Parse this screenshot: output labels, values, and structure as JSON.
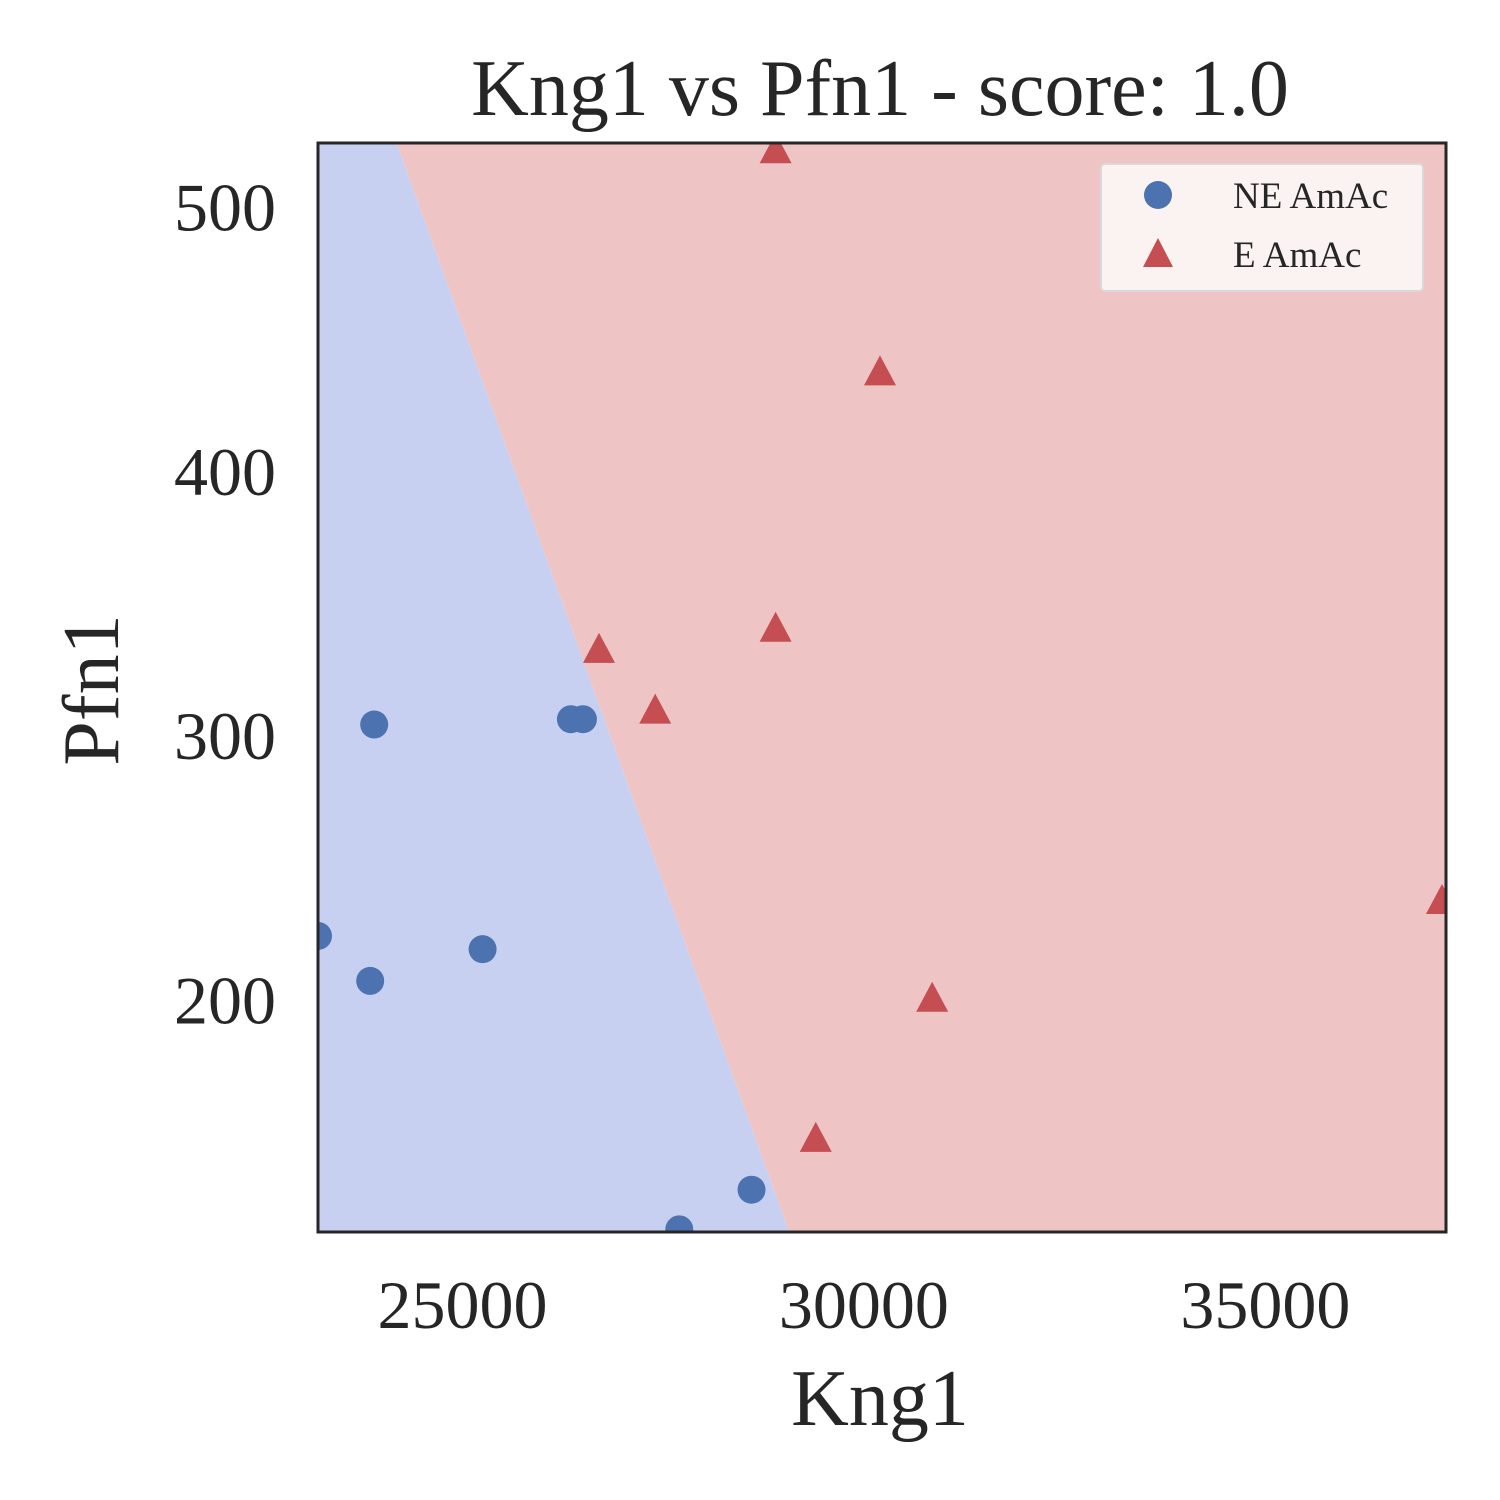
{
  "chart_data": {
    "type": "scatter",
    "title": "Kng1 vs Pfn1 - score: 1.0",
    "xlabel": "Kng1",
    "ylabel": "Pfn1",
    "xlim": [
      23200,
      37250
    ],
    "ylim": [
      112,
      524
    ],
    "x_ticks": [
      25000,
      30000,
      35000
    ],
    "y_ticks": [
      200,
      300,
      400,
      500
    ],
    "grid": false,
    "legend_position": "top-right",
    "decision_boundary": {
      "points": [
        [
          24180,
          524
        ],
        [
          29070,
          112
        ]
      ],
      "left_region_class": "NE AmAc",
      "right_region_class": "E AmAc",
      "left_region_color": "#c8d0f1",
      "right_region_color": "#eec4c4"
    },
    "series": [
      {
        "name": "NE AmAc",
        "marker": "circle",
        "color": "#4c72b0",
        "points": [
          [
            23200,
            224
          ],
          [
            23900,
            304
          ],
          [
            23850,
            207
          ],
          [
            25250,
            219
          ],
          [
            26350,
            306
          ],
          [
            26500,
            306
          ],
          [
            27700,
            113
          ],
          [
            28600,
            128
          ]
        ]
      },
      {
        "name": "E AmAc",
        "marker": "triangle",
        "color": "#c44e52",
        "points": [
          [
            28900,
            522
          ],
          [
            30200,
            438
          ],
          [
            28900,
            341
          ],
          [
            26700,
            333
          ],
          [
            27400,
            310
          ],
          [
            29400,
            148
          ],
          [
            30850,
            201
          ],
          [
            37200,
            238
          ]
        ]
      }
    ]
  }
}
